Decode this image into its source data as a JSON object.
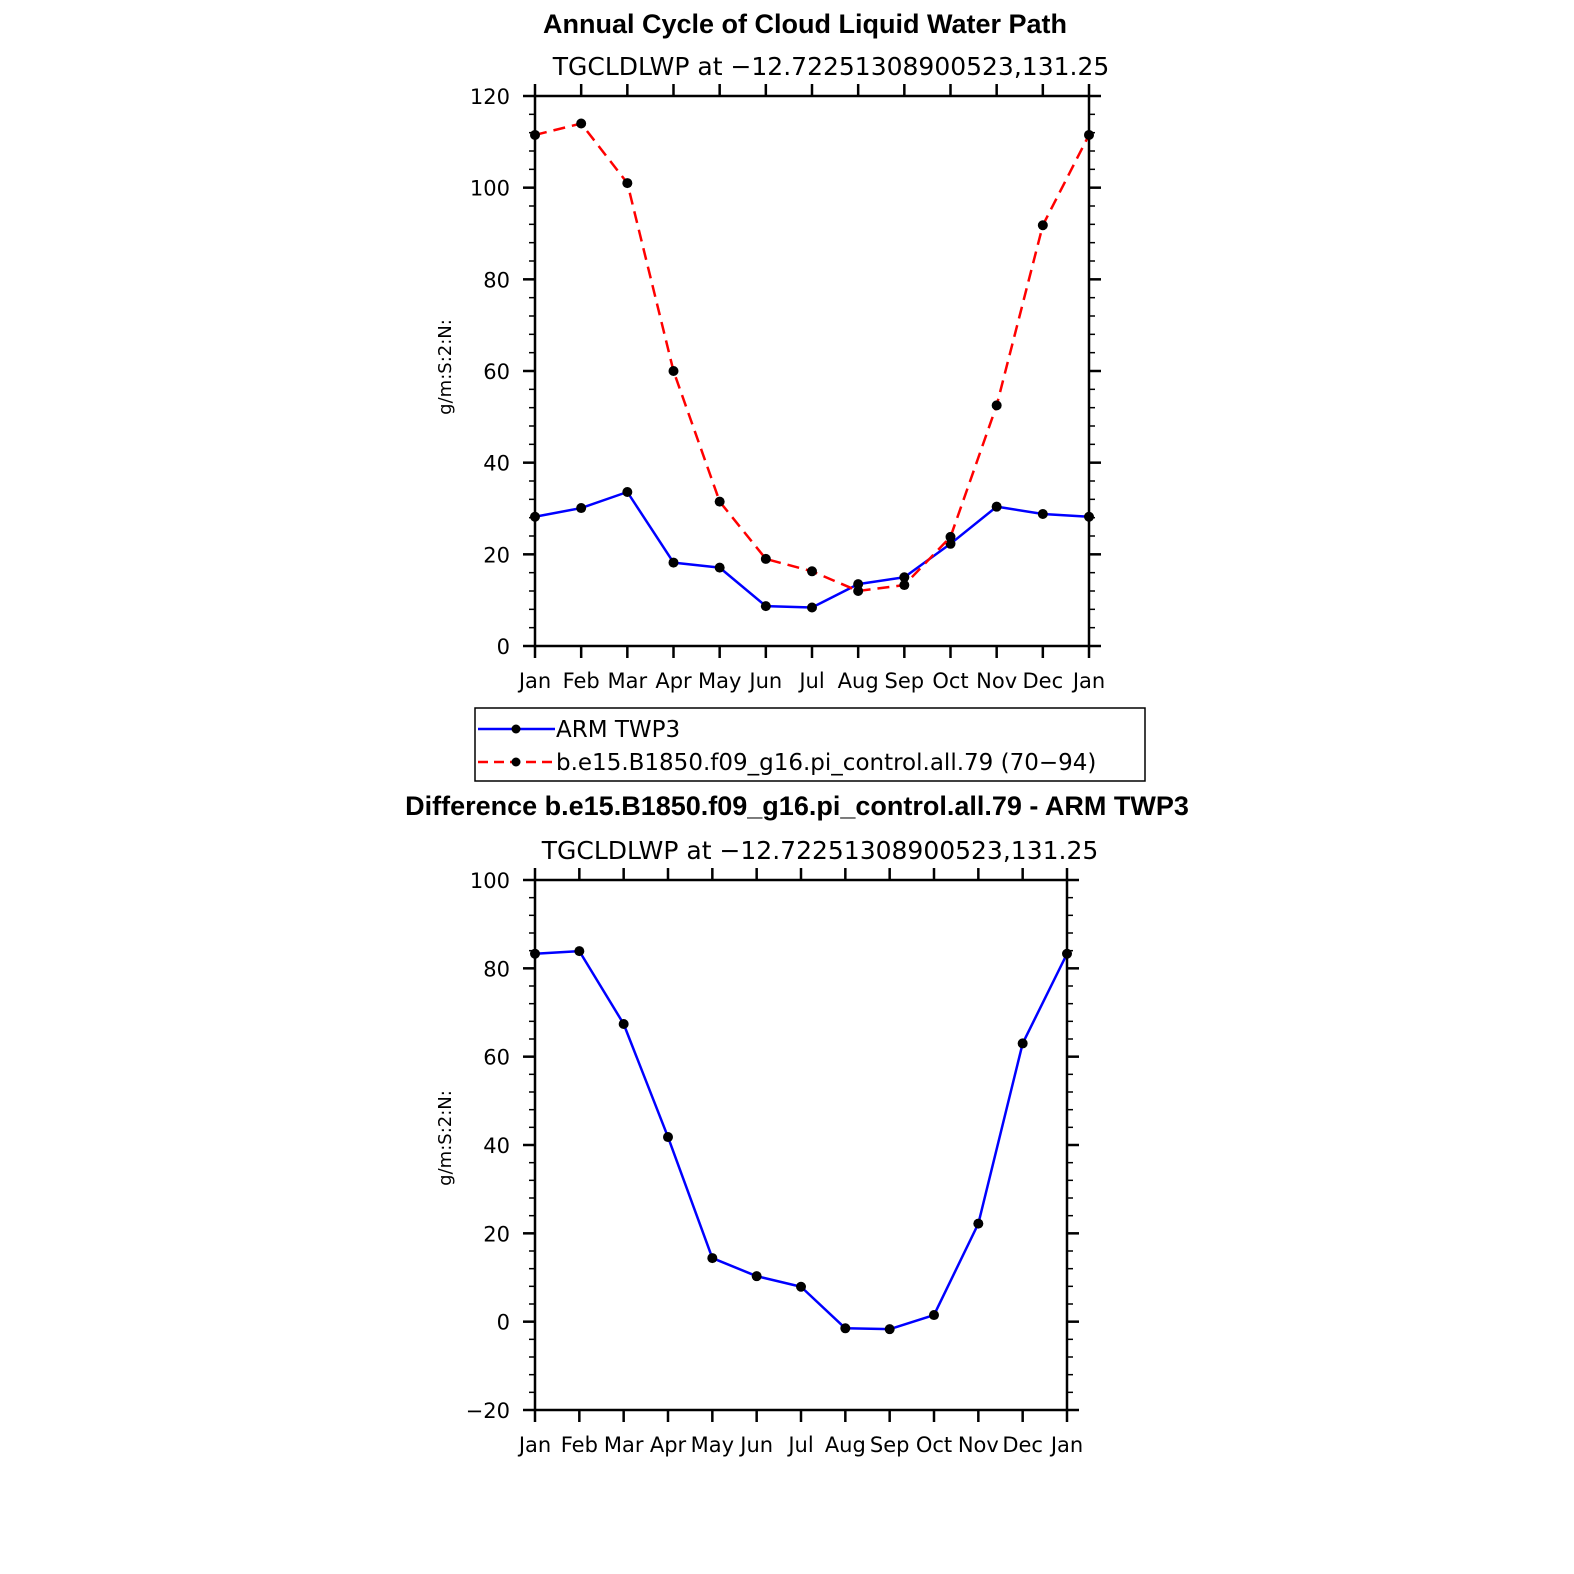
{
  "chart_data": [
    {
      "type": "line",
      "title": "Annual Cycle of Cloud Liquid Water Path",
      "subtitle": "TGCLDLWP at −12.72251308900523,131.25",
      "ylabel": "g/m:S:2:N:",
      "xlabel": "",
      "categories": [
        "Jan",
        "Feb",
        "Mar",
        "Apr",
        "May",
        "Jun",
        "Jul",
        "Aug",
        "Sep",
        "Oct",
        "Nov",
        "Dec",
        "Jan"
      ],
      "ylim": [
        0,
        120
      ],
      "yticks": [
        0,
        20,
        40,
        60,
        80,
        100,
        120
      ],
      "yticklabels": [
        "0",
        "20",
        "40",
        "60",
        "80",
        "100",
        "120"
      ],
      "series": [
        {
          "name": "ARM TWP3",
          "color": "#0000ff",
          "dash": "solid",
          "values": [
            28.2,
            30.1,
            33.6,
            18.2,
            17.1,
            8.7,
            8.4,
            13.5,
            15.0,
            22.3,
            30.4,
            28.8,
            28.2
          ]
        },
        {
          "name": "b.e15.B1850.f09_g16.pi_control.all.79 (70−94)",
          "color": "#ff0000",
          "dash": "dashed",
          "values": [
            111.5,
            114.0,
            101.0,
            60.0,
            31.5,
            19.0,
            16.3,
            12.0,
            13.3,
            23.8,
            52.5,
            91.8,
            111.5
          ]
        }
      ],
      "legend": {
        "entries": [
          "ARM TWP3",
          "b.e15.B1850.f09_g16.pi_control.all.79 (70−94)"
        ],
        "placement": "below"
      }
    },
    {
      "type": "line",
      "title": "Difference b.e15.B1850.f09_g16.pi_control.all.79 - ARM TWP3",
      "subtitle": "TGCLDLWP at −12.72251308900523,131.25",
      "ylabel": "g/m:S:2:N:",
      "xlabel": "",
      "categories": [
        "Jan",
        "Feb",
        "Mar",
        "Apr",
        "May",
        "Jun",
        "Jul",
        "Aug",
        "Sep",
        "Oct",
        "Nov",
        "Dec",
        "Jan"
      ],
      "ylim": [
        -20,
        100
      ],
      "yticks": [
        -20,
        0,
        20,
        40,
        60,
        80,
        100
      ],
      "yticklabels": [
        "−20",
        "0",
        "20",
        "40",
        "60",
        "80",
        "100"
      ],
      "series": [
        {
          "name": "Difference",
          "color": "#0000ff",
          "dash": "solid",
          "values": [
            83.3,
            83.9,
            67.4,
            41.8,
            14.4,
            10.3,
            7.9,
            -1.5,
            -1.7,
            1.5,
            22.2,
            63.0,
            83.3
          ]
        }
      ]
    }
  ]
}
